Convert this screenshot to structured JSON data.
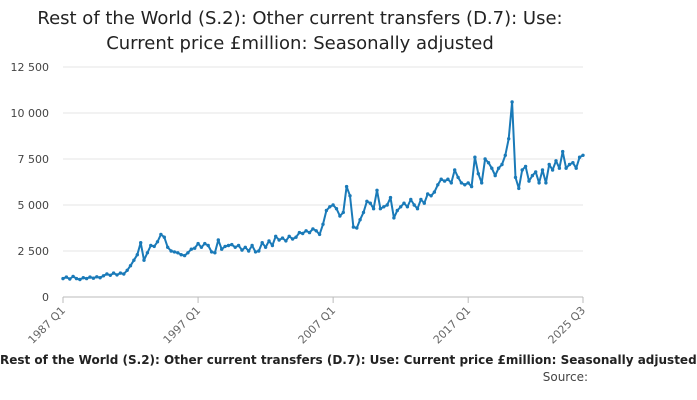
{
  "chart_data": {
    "type": "line",
    "title": [
      "Rest of the World (S.2): Other current transfers (D.7): Use:",
      "Current price £million: Seasonally adjusted"
    ],
    "series_label": "Rest of the World (S.2): Other current transfers (D.7): Use: Current price £million: Seasonally adjusted",
    "source_label": "Source:",
    "ylim": [
      0,
      12500
    ],
    "yticks": [
      {
        "value": 0,
        "label": "0"
      },
      {
        "value": 2500,
        "label": "2 500"
      },
      {
        "value": 5000,
        "label": "5 000"
      },
      {
        "value": 7500,
        "label": "7 500"
      },
      {
        "value": 10000,
        "label": "10 000"
      },
      {
        "value": 12500,
        "label": "12 500"
      }
    ],
    "xticks": [
      {
        "value": 1987.0,
        "label": "1987 Q1"
      },
      {
        "value": 1997.0,
        "label": "1997 Q1"
      },
      {
        "value": 2007.0,
        "label": "2007 Q1"
      },
      {
        "value": 2017.0,
        "label": "2017 Q1"
      },
      {
        "value": 2025.5,
        "label": "2025 Q3"
      }
    ],
    "xlim": [
      1987.0,
      2025.5
    ],
    "grid": true,
    "color": "#1a7ab8",
    "points": [
      [
        1987.0,
        1000
      ],
      [
        1987.25,
        1080
      ],
      [
        1987.5,
        980
      ],
      [
        1987.75,
        1120
      ],
      [
        1988.0,
        1000
      ],
      [
        1988.25,
        950
      ],
      [
        1988.5,
        1050
      ],
      [
        1988.75,
        1000
      ],
      [
        1989.0,
        1080
      ],
      [
        1989.25,
        1020
      ],
      [
        1989.5,
        1100
      ],
      [
        1989.75,
        1050
      ],
      [
        1990.0,
        1150
      ],
      [
        1990.25,
        1250
      ],
      [
        1990.5,
        1180
      ],
      [
        1990.75,
        1300
      ],
      [
        1991.0,
        1200
      ],
      [
        1991.25,
        1300
      ],
      [
        1991.5,
        1250
      ],
      [
        1991.75,
        1450
      ],
      [
        1992.0,
        1700
      ],
      [
        1992.25,
        2000
      ],
      [
        1992.5,
        2300
      ],
      [
        1992.75,
        2950
      ],
      [
        1993.0,
        2000
      ],
      [
        1993.25,
        2400
      ],
      [
        1993.5,
        2800
      ],
      [
        1993.75,
        2750
      ],
      [
        1994.0,
        3000
      ],
      [
        1994.25,
        3400
      ],
      [
        1994.5,
        3250
      ],
      [
        1994.75,
        2700
      ],
      [
        1995.0,
        2500
      ],
      [
        1995.25,
        2450
      ],
      [
        1995.5,
        2400
      ],
      [
        1995.75,
        2300
      ],
      [
        1996.0,
        2250
      ],
      [
        1996.25,
        2400
      ],
      [
        1996.5,
        2600
      ],
      [
        1996.75,
        2650
      ],
      [
        1997.0,
        2900
      ],
      [
        1997.25,
        2700
      ],
      [
        1997.5,
        2900
      ],
      [
        1997.75,
        2800
      ],
      [
        1998.0,
        2450
      ],
      [
        1998.25,
        2400
      ],
      [
        1998.5,
        3100
      ],
      [
        1998.75,
        2600
      ],
      [
        1999.0,
        2750
      ],
      [
        1999.25,
        2800
      ],
      [
        1999.5,
        2850
      ],
      [
        1999.75,
        2700
      ],
      [
        2000.0,
        2800
      ],
      [
        2000.25,
        2550
      ],
      [
        2000.5,
        2700
      ],
      [
        2000.75,
        2500
      ],
      [
        2001.0,
        2800
      ],
      [
        2001.25,
        2450
      ],
      [
        2001.5,
        2500
      ],
      [
        2001.75,
        2950
      ],
      [
        2002.0,
        2700
      ],
      [
        2002.25,
        3050
      ],
      [
        2002.5,
        2800
      ],
      [
        2002.75,
        3300
      ],
      [
        2003.0,
        3100
      ],
      [
        2003.25,
        3200
      ],
      [
        2003.5,
        3050
      ],
      [
        2003.75,
        3300
      ],
      [
        2004.0,
        3150
      ],
      [
        2004.25,
        3250
      ],
      [
        2004.5,
        3500
      ],
      [
        2004.75,
        3450
      ],
      [
        2005.0,
        3600
      ],
      [
        2005.25,
        3500
      ],
      [
        2005.5,
        3700
      ],
      [
        2005.75,
        3600
      ],
      [
        2006.0,
        3400
      ],
      [
        2006.25,
        3950
      ],
      [
        2006.5,
        4700
      ],
      [
        2006.75,
        4900
      ],
      [
        2007.0,
        5000
      ],
      [
        2007.25,
        4800
      ],
      [
        2007.5,
        4400
      ],
      [
        2007.75,
        4600
      ],
      [
        2008.0,
        6000
      ],
      [
        2008.25,
        5500
      ],
      [
        2008.5,
        3800
      ],
      [
        2008.75,
        3750
      ],
      [
        2009.0,
        4200
      ],
      [
        2009.25,
        4600
      ],
      [
        2009.5,
        5200
      ],
      [
        2009.75,
        5100
      ],
      [
        2010.0,
        4800
      ],
      [
        2010.25,
        5800
      ],
      [
        2010.5,
        4800
      ],
      [
        2010.75,
        4900
      ],
      [
        2011.0,
        5000
      ],
      [
        2011.25,
        5400
      ],
      [
        2011.5,
        4300
      ],
      [
        2011.75,
        4700
      ],
      [
        2012.0,
        4900
      ],
      [
        2012.25,
        5100
      ],
      [
        2012.5,
        4900
      ],
      [
        2012.75,
        5300
      ],
      [
        2013.0,
        5000
      ],
      [
        2013.25,
        4800
      ],
      [
        2013.5,
        5300
      ],
      [
        2013.75,
        5100
      ],
      [
        2014.0,
        5600
      ],
      [
        2014.25,
        5500
      ],
      [
        2014.5,
        5700
      ],
      [
        2014.75,
        6100
      ],
      [
        2015.0,
        6400
      ],
      [
        2015.25,
        6300
      ],
      [
        2015.5,
        6400
      ],
      [
        2015.75,
        6200
      ],
      [
        2016.0,
        6900
      ],
      [
        2016.25,
        6500
      ],
      [
        2016.5,
        6200
      ],
      [
        2016.75,
        6100
      ],
      [
        2017.0,
        6200
      ],
      [
        2017.25,
        6000
      ],
      [
        2017.5,
        7600
      ],
      [
        2017.75,
        6700
      ],
      [
        2018.0,
        6200
      ],
      [
        2018.25,
        7500
      ],
      [
        2018.5,
        7300
      ],
      [
        2018.75,
        7000
      ],
      [
        2019.0,
        6600
      ],
      [
        2019.25,
        7000
      ],
      [
        2019.5,
        7200
      ],
      [
        2019.75,
        7700
      ],
      [
        2020.0,
        8600
      ],
      [
        2020.25,
        10600
      ],
      [
        2020.5,
        6500
      ],
      [
        2020.75,
        5900
      ],
      [
        2021.0,
        6900
      ],
      [
        2021.25,
        7100
      ],
      [
        2021.5,
        6300
      ],
      [
        2021.75,
        6600
      ],
      [
        2022.0,
        6800
      ],
      [
        2022.25,
        6200
      ],
      [
        2022.5,
        6900
      ],
      [
        2022.75,
        6200
      ],
      [
        2023.0,
        7200
      ],
      [
        2023.25,
        6900
      ],
      [
        2023.5,
        7400
      ],
      [
        2023.75,
        7000
      ],
      [
        2024.0,
        7900
      ],
      [
        2024.25,
        7000
      ],
      [
        2024.5,
        7200
      ],
      [
        2024.75,
        7300
      ],
      [
        2025.0,
        7000
      ],
      [
        2025.25,
        7600
      ],
      [
        2025.5,
        7700
      ]
    ]
  }
}
